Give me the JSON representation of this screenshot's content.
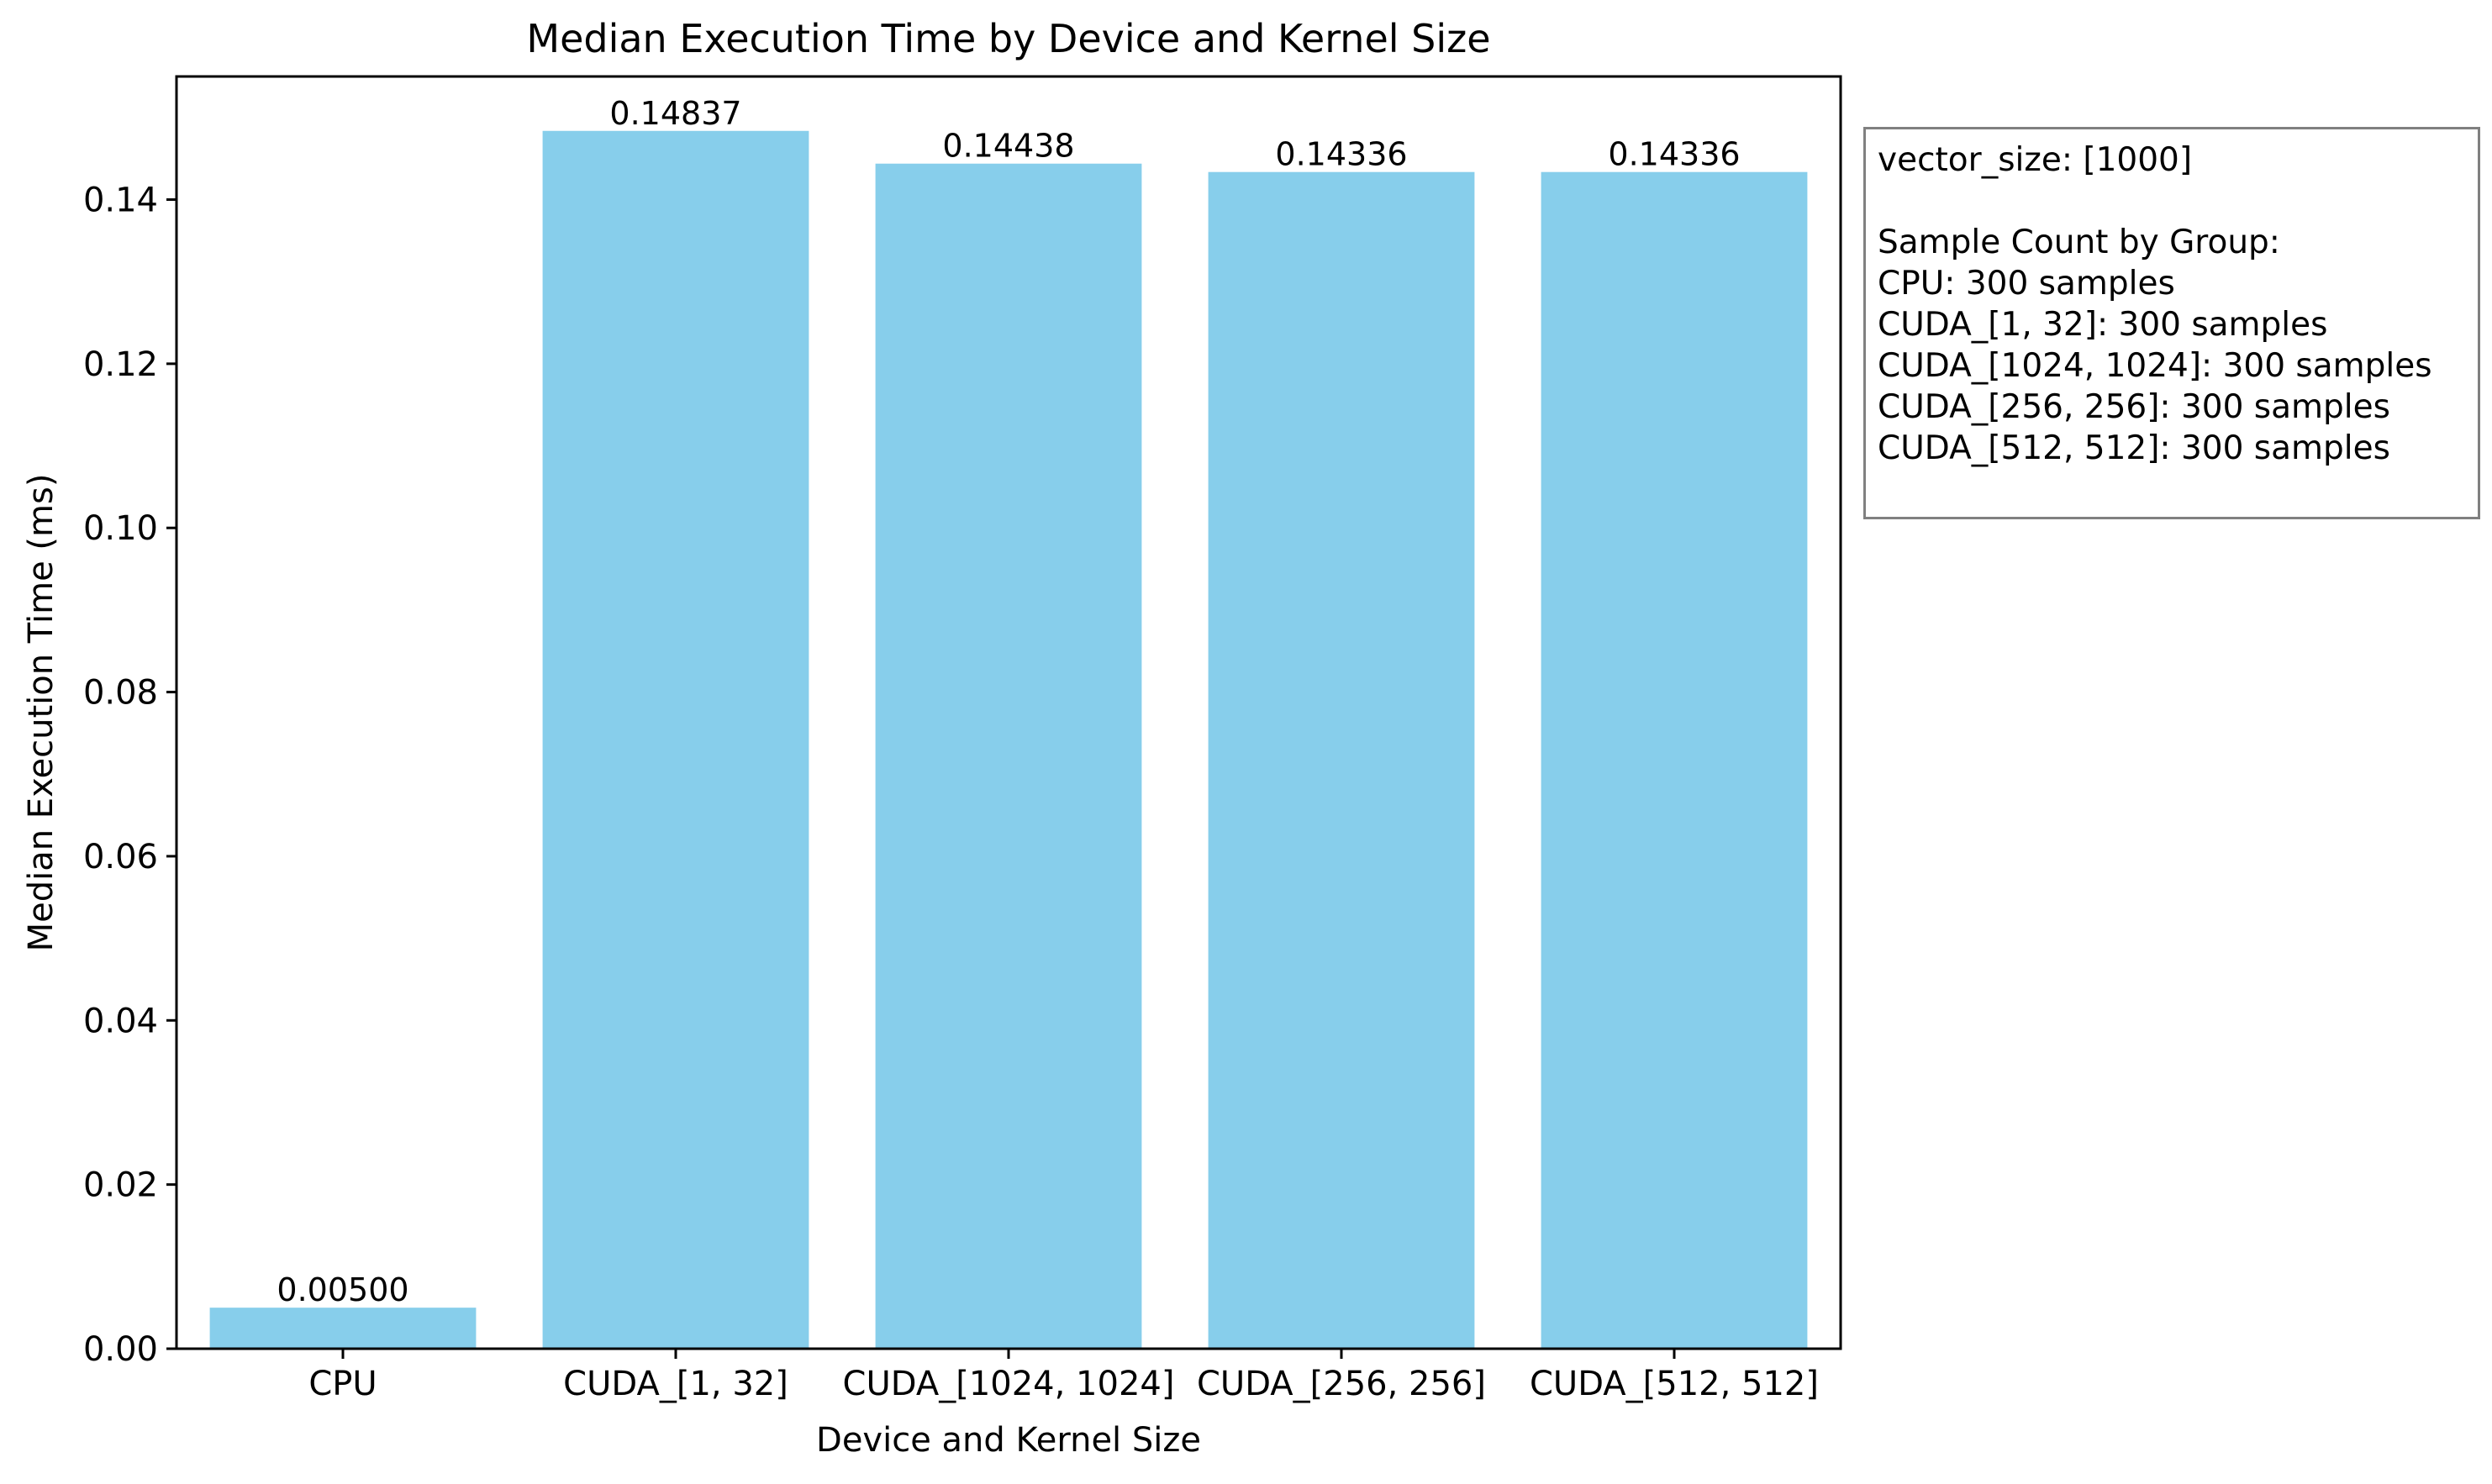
{
  "chart_data": {
    "type": "bar",
    "title": "Median Execution Time by Device and Kernel Size",
    "xlabel": "Device and Kernel Size",
    "ylabel": "Median Execution Time (ms)",
    "categories": [
      "CPU",
      "CUDA_[1, 32]",
      "CUDA_[1024, 1024]",
      "CUDA_[256, 256]",
      "CUDA_[512, 512]"
    ],
    "values": [
      0.005,
      0.14837,
      0.14438,
      0.14336,
      0.14336
    ],
    "value_labels": [
      "0.00500",
      "0.14837",
      "0.14438",
      "0.14336",
      "0.14336"
    ],
    "ylim": [
      0,
      0.155
    ],
    "yticks": [
      0.0,
      0.02,
      0.04,
      0.06,
      0.08,
      0.1,
      0.12,
      0.14
    ],
    "ytick_labels": [
      "0.00",
      "0.02",
      "0.04",
      "0.06",
      "0.08",
      "0.10",
      "0.12",
      "0.14"
    ],
    "bar_color": "#87CEEB",
    "grid": false,
    "legend": "none"
  },
  "info_box": {
    "vector_size": "vector_size: [1000]",
    "heading": "Sample Count by Group:",
    "lines": [
      "CPU: 300 samples",
      "CUDA_[1, 32]: 300 samples",
      "CUDA_[1024, 1024]: 300 samples",
      "CUDA_[256, 256]: 300 samples",
      "CUDA_[512, 512]: 300 samples"
    ]
  }
}
